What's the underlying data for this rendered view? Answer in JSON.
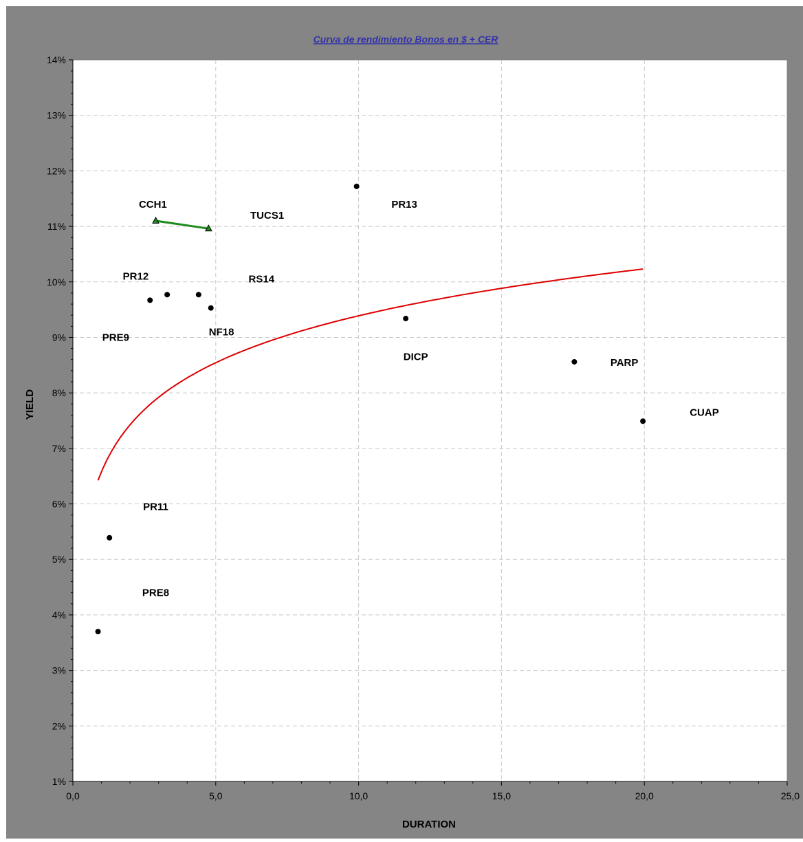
{
  "chart_data": {
    "type": "scatter",
    "title": "Curva de rendimiento Bonos en $ + CER",
    "xlabel": "DURATION",
    "ylabel": "YIELD",
    "xlim": [
      0,
      25
    ],
    "ylim": [
      1,
      14
    ],
    "x_ticks": [
      "0,0",
      "5,0",
      "10,0",
      "15,0",
      "20,0",
      "25,0"
    ],
    "y_ticks": [
      "1%",
      "2%",
      "3%",
      "4%",
      "5%",
      "6%",
      "7%",
      "8%",
      "9%",
      "10%",
      "11%",
      "12%",
      "13%",
      "14%"
    ],
    "grid": true,
    "colors": {
      "frame_background": "#858585",
      "plot_background": "#ffffff",
      "title": "#3333aa",
      "points": "#000000",
      "trend_line": "#dd0000",
      "segment_line": "#1e8a1e"
    },
    "labels": [
      {
        "text": "CCH1",
        "x": 2.8,
        "y": 11.4
      },
      {
        "text": "TUCS1",
        "x": 6.8,
        "y": 11.2
      },
      {
        "text": "PR13",
        "x": 11.6,
        "y": 11.4
      },
      {
        "text": "PR12",
        "x": 2.2,
        "y": 10.1
      },
      {
        "text": "RS14",
        "x": 6.6,
        "y": 10.05
      },
      {
        "text": "PRE9",
        "x": 1.5,
        "y": 9.0
      },
      {
        "text": "NF18",
        "x": 5.2,
        "y": 9.1
      },
      {
        "text": "DICP",
        "x": 12.0,
        "y": 8.65
      },
      {
        "text": "PARP",
        "x": 19.3,
        "y": 8.55
      },
      {
        "text": "CUAP",
        "x": 22.1,
        "y": 7.65
      },
      {
        "text": "PR11",
        "x": 2.9,
        "y": 5.95
      },
      {
        "text": "PRE8",
        "x": 2.9,
        "y": 4.4
      }
    ],
    "series": [
      {
        "type": "scatter",
        "points": [
          {
            "x": 0.88,
            "y": 3.7
          },
          {
            "x": 1.28,
            "y": 5.39
          },
          {
            "x": 2.7,
            "y": 9.67
          },
          {
            "x": 3.3,
            "y": 9.77
          },
          {
            "x": 4.4,
            "y": 9.77
          },
          {
            "x": 4.83,
            "y": 9.53
          },
          {
            "x": 9.93,
            "y": 11.72
          },
          {
            "x": 11.65,
            "y": 9.34
          },
          {
            "x": 17.55,
            "y": 8.56
          },
          {
            "x": 19.95,
            "y": 7.49
          }
        ]
      },
      {
        "type": "line",
        "points": [
          {
            "x": 2.9,
            "y": 11.1
          },
          {
            "x": 4.75,
            "y": 10.96
          }
        ]
      },
      {
        "type": "trend",
        "fit": "logarithmic",
        "a": 6.58,
        "b": 1.22,
        "x_range": [
          0.88,
          19.95
        ]
      }
    ]
  }
}
